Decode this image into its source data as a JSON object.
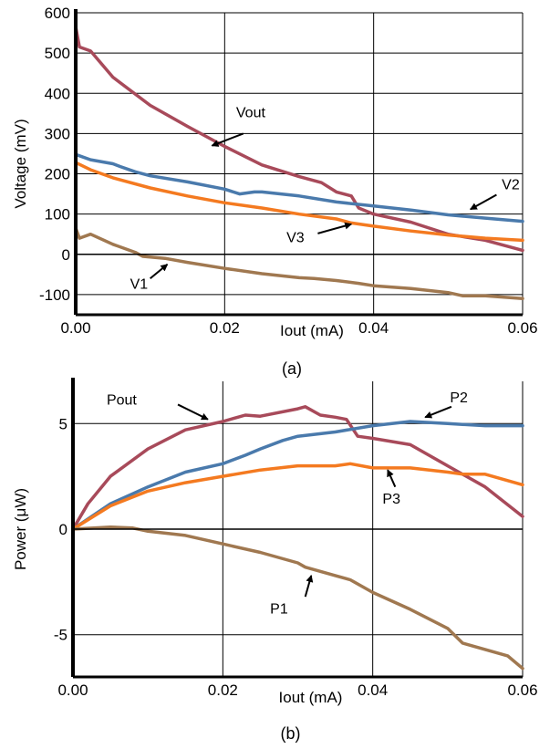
{
  "chart_data": [
    {
      "type": "line",
      "caption": "(a)",
      "xlabel": "Iout (mA)",
      "ylabel": "Voltage (mV)",
      "xlim": [
        0,
        0.06
      ],
      "ylim": [
        -150,
        600
      ],
      "xticks": [
        "0.00",
        "0.02",
        "0.04",
        "0.06"
      ],
      "yticks": [
        "-100",
        "0",
        "100",
        "200",
        "300",
        "400",
        "500",
        "600"
      ],
      "grid": true,
      "legend": "none",
      "series": [
        {
          "name": "Vout",
          "color": "#a84a5a",
          "x": [
            0,
            0.0005,
            0.002,
            0.005,
            0.01,
            0.015,
            0.02,
            0.025,
            0.03,
            0.033,
            0.035,
            0.037,
            0.038,
            0.04,
            0.045,
            0.05,
            0.055,
            0.06
          ],
          "y": [
            565,
            515,
            505,
            440,
            370,
            318,
            268,
            222,
            193,
            178,
            155,
            145,
            115,
            100,
            80,
            50,
            35,
            10
          ]
        },
        {
          "name": "V2",
          "color": "#4a7aac",
          "x": [
            0,
            0.002,
            0.005,
            0.006,
            0.008,
            0.01,
            0.015,
            0.02,
            0.022,
            0.024,
            0.025,
            0.03,
            0.035,
            0.04,
            0.045,
            0.05,
            0.055,
            0.06
          ],
          "y": [
            248,
            235,
            225,
            218,
            205,
            195,
            180,
            162,
            150,
            155,
            155,
            145,
            130,
            120,
            110,
            98,
            90,
            82
          ]
        },
        {
          "name": "V3",
          "color": "#f47a20",
          "x": [
            0,
            0.002,
            0.005,
            0.01,
            0.015,
            0.02,
            0.025,
            0.03,
            0.035,
            0.037,
            0.04,
            0.045,
            0.05,
            0.055,
            0.06
          ],
          "y": [
            228,
            210,
            190,
            165,
            145,
            128,
            115,
            100,
            88,
            78,
            70,
            58,
            48,
            40,
            35
          ]
        },
        {
          "name": "V1",
          "color": "#a07850",
          "x": [
            0,
            0.0005,
            0.002,
            0.005,
            0.008,
            0.009,
            0.012,
            0.015,
            0.02,
            0.025,
            0.03,
            0.032,
            0.035,
            0.038,
            0.04,
            0.045,
            0.05,
            0.052,
            0.055,
            0.06
          ],
          "y": [
            65,
            40,
            50,
            25,
            5,
            -5,
            -10,
            -20,
            -35,
            -48,
            -58,
            -60,
            -65,
            -72,
            -78,
            -85,
            -95,
            -103,
            -103,
            -110
          ]
        }
      ],
      "annotations": [
        {
          "text": "Vout",
          "x": 0.0235,
          "y": 340,
          "ax": 0.0225,
          "ay": 300,
          "bx": 0.0183,
          "by": 270
        },
        {
          "text": "V2",
          "x": 0.0584,
          "y": 162,
          "ax": 0.0565,
          "ay": 148,
          "bx": 0.053,
          "by": 112
        },
        {
          "text": "V3",
          "x": 0.0295,
          "y": 30,
          "ax": 0.0325,
          "ay": 52,
          "bx": 0.037,
          "by": 75
        },
        {
          "text": "V1",
          "x": 0.0085,
          "y": -85,
          "ax": 0.01,
          "ay": -60,
          "bx": 0.0123,
          "by": -25
        }
      ]
    },
    {
      "type": "line",
      "caption": "(b)",
      "xlabel": "Iout (mA)",
      "ylabel": "Power (μW)",
      "xlim": [
        0,
        0.06
      ],
      "ylim": [
        -7,
        7
      ],
      "xticks": [
        "0.00",
        "0.02",
        "0.04",
        "0.06"
      ],
      "yticks": [
        "-5",
        "0",
        "5"
      ],
      "grid": true,
      "legend": "none",
      "series": [
        {
          "name": "Pout",
          "color": "#a84a5a",
          "x": [
            0,
            0.002,
            0.005,
            0.01,
            0.015,
            0.02,
            0.022,
            0.023,
            0.025,
            0.03,
            0.031,
            0.033,
            0.035,
            0.0365,
            0.038,
            0.04,
            0.045,
            0.05,
            0.055,
            0.06
          ],
          "y": [
            0,
            1.2,
            2.5,
            3.8,
            4.7,
            5.1,
            5.3,
            5.4,
            5.35,
            5.7,
            5.8,
            5.4,
            5.3,
            5.2,
            4.4,
            4.3,
            4.0,
            3.0,
            2.0,
            0.6
          ]
        },
        {
          "name": "P2",
          "color": "#4a7aac",
          "x": [
            0,
            0.005,
            0.01,
            0.015,
            0.02,
            0.023,
            0.025,
            0.028,
            0.03,
            0.035,
            0.04,
            0.045,
            0.05,
            0.055,
            0.06
          ],
          "y": [
            0,
            1.2,
            2.0,
            2.7,
            3.1,
            3.5,
            3.8,
            4.2,
            4.4,
            4.6,
            4.9,
            5.1,
            5.0,
            4.9,
            4.9
          ]
        },
        {
          "name": "P3",
          "color": "#f47a20",
          "x": [
            0,
            0.005,
            0.01,
            0.015,
            0.02,
            0.025,
            0.03,
            0.035,
            0.037,
            0.04,
            0.045,
            0.05,
            0.052,
            0.055,
            0.06
          ],
          "y": [
            0,
            1.1,
            1.8,
            2.2,
            2.5,
            2.8,
            3.0,
            3.0,
            3.1,
            2.9,
            2.9,
            2.7,
            2.6,
            2.6,
            2.1
          ]
        },
        {
          "name": "P1",
          "color": "#a07850",
          "x": [
            0,
            0.005,
            0.008,
            0.01,
            0.015,
            0.02,
            0.025,
            0.03,
            0.031,
            0.035,
            0.037,
            0.04,
            0.045,
            0.05,
            0.052,
            0.055,
            0.058,
            0.06
          ],
          "y": [
            0,
            0.1,
            0.05,
            -0.1,
            -0.3,
            -0.7,
            -1.1,
            -1.6,
            -1.8,
            -2.2,
            -2.4,
            -3.0,
            -3.8,
            -4.7,
            -5.4,
            -5.7,
            -6.0,
            -6.6
          ]
        }
      ],
      "annotations": [
        {
          "text": "Pout",
          "x": 0.0065,
          "y": 5.9,
          "ax": 0.014,
          "ay": 5.9,
          "bx": 0.018,
          "by": 5.2
        },
        {
          "text": "P2",
          "x": 0.0515,
          "y": 6.0,
          "ax": 0.0505,
          "ay": 5.8,
          "bx": 0.047,
          "by": 5.3
        },
        {
          "text": "P3",
          "x": 0.0425,
          "y": 1.2,
          "ax": 0.043,
          "ay": 2.0,
          "bx": 0.042,
          "by": 2.8
        },
        {
          "text": "P1",
          "x": 0.0275,
          "y": -4.0,
          "ax": 0.031,
          "ay": -3.2,
          "bx": 0.0318,
          "by": -2.2
        }
      ]
    }
  ]
}
